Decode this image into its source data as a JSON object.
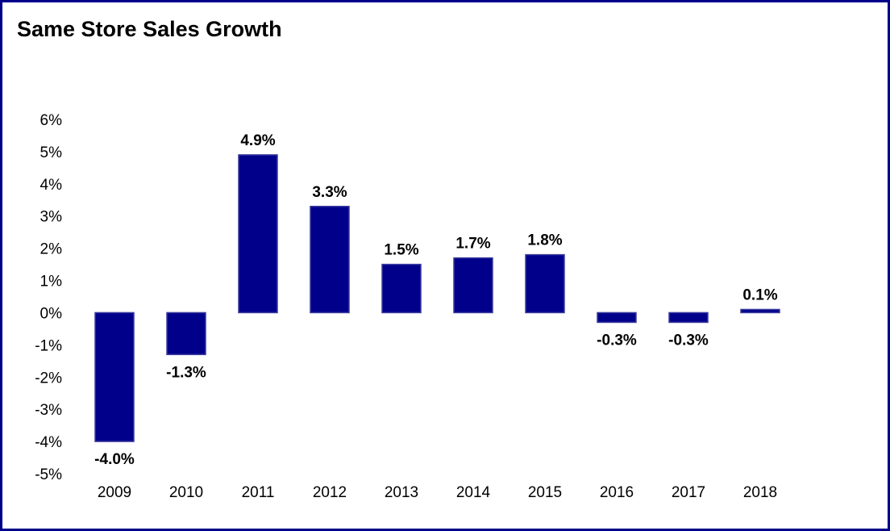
{
  "chart_data": {
    "type": "bar",
    "title": "Same Store Sales Growth",
    "xlabel": "",
    "ylabel": "",
    "categories": [
      "2009",
      "2010",
      "2011",
      "2012",
      "2013",
      "2014",
      "2015",
      "2016",
      "2017",
      "2018"
    ],
    "values": [
      -4.0,
      -1.3,
      4.9,
      3.3,
      1.5,
      1.7,
      1.8,
      -0.3,
      -0.3,
      0.1
    ],
    "data_labels": [
      "-4.0%",
      "-1.3%",
      "4.9%",
      "3.3%",
      "1.5%",
      "1.7%",
      "1.8%",
      "-0.3%",
      "-0.3%",
      "0.1%"
    ],
    "ylim": [
      -5,
      6
    ],
    "yticks": [
      6,
      5,
      4,
      3,
      2,
      1,
      0,
      -1,
      -2,
      -3,
      -4,
      -5
    ],
    "ytick_labels": [
      "6%",
      "5%",
      "4%",
      "3%",
      "2%",
      "1%",
      "0%",
      "-1%",
      "-2%",
      "-3%",
      "-4%",
      "-5%"
    ],
    "grid": false,
    "legend": "none",
    "colors": {
      "bar_fill": "#00008b",
      "bar_edge": "#3c3c9e",
      "frame": "#00008b"
    }
  }
}
